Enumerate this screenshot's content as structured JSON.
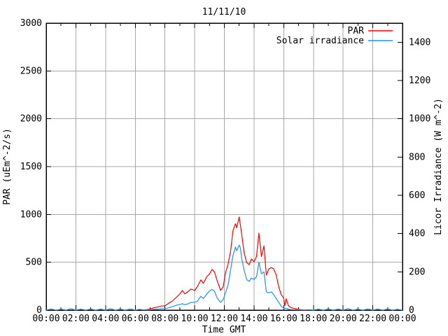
{
  "window": {
    "background": "#ffffff"
  },
  "chart_data": {
    "type": "line",
    "title": "11/11/10",
    "xlabel": "Time GMT",
    "ylabel_left": "PAR (uEm^-2/s)",
    "ylabel_right": "Licor Irradiance (W m^-2)",
    "x_range_hours": [
      0,
      24
    ],
    "y_left_range": [
      0,
      3000
    ],
    "y_right_range": [
      0,
      1500
    ],
    "grid": true,
    "grid_color": "#a8a8a8",
    "border_color": "#000000",
    "background": "#ffffff",
    "x_ticks": {
      "values": [
        0,
        2,
        4,
        6,
        8,
        10,
        12,
        14,
        16,
        18,
        20,
        22,
        24
      ],
      "labels": [
        "00:00",
        "02:00",
        "04:00",
        "06:00",
        "08:00",
        "10:00",
        "12:00",
        "14:00",
        "16:00",
        "18:00",
        "20:00",
        "22:00",
        "00:00"
      ]
    },
    "x_minor_ticks": [
      1,
      3,
      5,
      7,
      9,
      11,
      13,
      15,
      17,
      19,
      21,
      23
    ],
    "y_left_ticks": [
      0,
      500,
      1000,
      1500,
      2000,
      2500,
      3000
    ],
    "y_right_ticks": [
      0,
      200,
      400,
      600,
      800,
      1000,
      1200,
      1400
    ],
    "legend": {
      "position": "top-right-inside",
      "entries": [
        {
          "label": "PAR",
          "color": "#ff0000"
        },
        {
          "label": "Solar irradiance",
          "color": "#1e90ff"
        }
      ]
    },
    "series": [
      {
        "name": "PAR",
        "axis": "left",
        "units": "uEm^-2/s",
        "color": "#ff0000",
        "t": [
          6.5,
          6.75,
          7,
          7.25,
          7.5,
          7.75,
          8,
          8.25,
          8.5,
          8.75,
          9,
          9.17,
          9.33,
          9.5,
          9.75,
          10,
          10.17,
          10.42,
          10.58,
          10.83,
          11,
          11.17,
          11.33,
          11.5,
          11.75,
          11.92,
          12.08,
          12.25,
          12.42,
          12.58,
          12.75,
          12.83,
          13,
          13.08,
          13.17,
          13.33,
          13.5,
          13.67,
          13.83,
          14,
          14.17,
          14.33,
          14.5,
          14.67,
          14.83,
          15,
          15.17,
          15.33,
          15.5,
          15.67,
          15.83,
          16,
          16.08,
          16.17,
          16.33,
          16.5,
          16.75,
          17,
          17.25,
          17.5
        ],
        "values": [
          2,
          5,
          12,
          25,
          32,
          42,
          45,
          72,
          95,
          132,
          168,
          205,
          170,
          185,
          220,
          205,
          242,
          315,
          280,
          352,
          378,
          425,
          400,
          315,
          205,
          242,
          390,
          480,
          612,
          830,
          902,
          860,
          975,
          890,
          792,
          602,
          498,
          475,
          535,
          505,
          562,
          805,
          560,
          672,
          365,
          430,
          445,
          430,
          365,
          240,
          162,
          125,
          45,
          118,
          42,
          25,
          15,
          8,
          3,
          0
        ]
      },
      {
        "name": "Solar irradiance",
        "axis": "right",
        "units": "W m^-2",
        "color": "#1e90ff",
        "t": [
          0,
          0.33,
          0.67,
          1,
          1.33,
          1.67,
          2,
          2.33,
          2.67,
          3,
          3.33,
          3.67,
          4,
          4.33,
          4.67,
          5,
          5.33,
          5.67,
          6,
          6.25,
          6.5,
          6.75,
          7,
          7.25,
          7.5,
          7.75,
          8,
          8.25,
          8.5,
          8.75,
          9,
          9.17,
          9.33,
          9.5,
          9.75,
          10,
          10.17,
          10.42,
          10.58,
          10.83,
          11,
          11.17,
          11.33,
          11.5,
          11.75,
          11.92,
          12.08,
          12.25,
          12.42,
          12.58,
          12.75,
          12.83,
          13,
          13.08,
          13.17,
          13.33,
          13.5,
          13.67,
          13.83,
          14,
          14.17,
          14.33,
          14.5,
          14.67,
          14.83,
          15,
          15.17,
          15.33,
          15.5,
          15.67,
          15.83,
          16,
          16.08,
          16.17,
          16.33,
          16.5,
          16.75,
          17,
          17.25,
          17.5,
          17.75,
          18,
          18.33,
          18.67,
          19,
          19.33,
          19.67,
          20,
          20.33,
          20.67,
          21,
          21.33,
          21.67,
          22,
          22.33,
          22.67,
          23,
          23.33,
          23.67,
          24
        ],
        "values": [
          0,
          6,
          0,
          5,
          0,
          7,
          0,
          5,
          0,
          6,
          0,
          5,
          0,
          7,
          0,
          5,
          0,
          6,
          0,
          4,
          2,
          1,
          2,
          4,
          5,
          7,
          8,
          12,
          18,
          25,
          30,
          33,
          29,
          31,
          40,
          41,
          45,
          72,
          60,
          85,
          100,
          108,
          100,
          65,
          40,
          55,
          90,
          130,
          210,
          285,
          330,
          310,
          340,
          325,
          270,
          210,
          160,
          150,
          168,
          160,
          175,
          250,
          190,
          200,
          95,
          90,
          95,
          80,
          60,
          40,
          20,
          10,
          8,
          10,
          4,
          3,
          2,
          2,
          1,
          1,
          2,
          0,
          5,
          0,
          6,
          0,
          5,
          0,
          7,
          0,
          5,
          0,
          6,
          0,
          5,
          0,
          6,
          0,
          4,
          0
        ]
      }
    ]
  }
}
